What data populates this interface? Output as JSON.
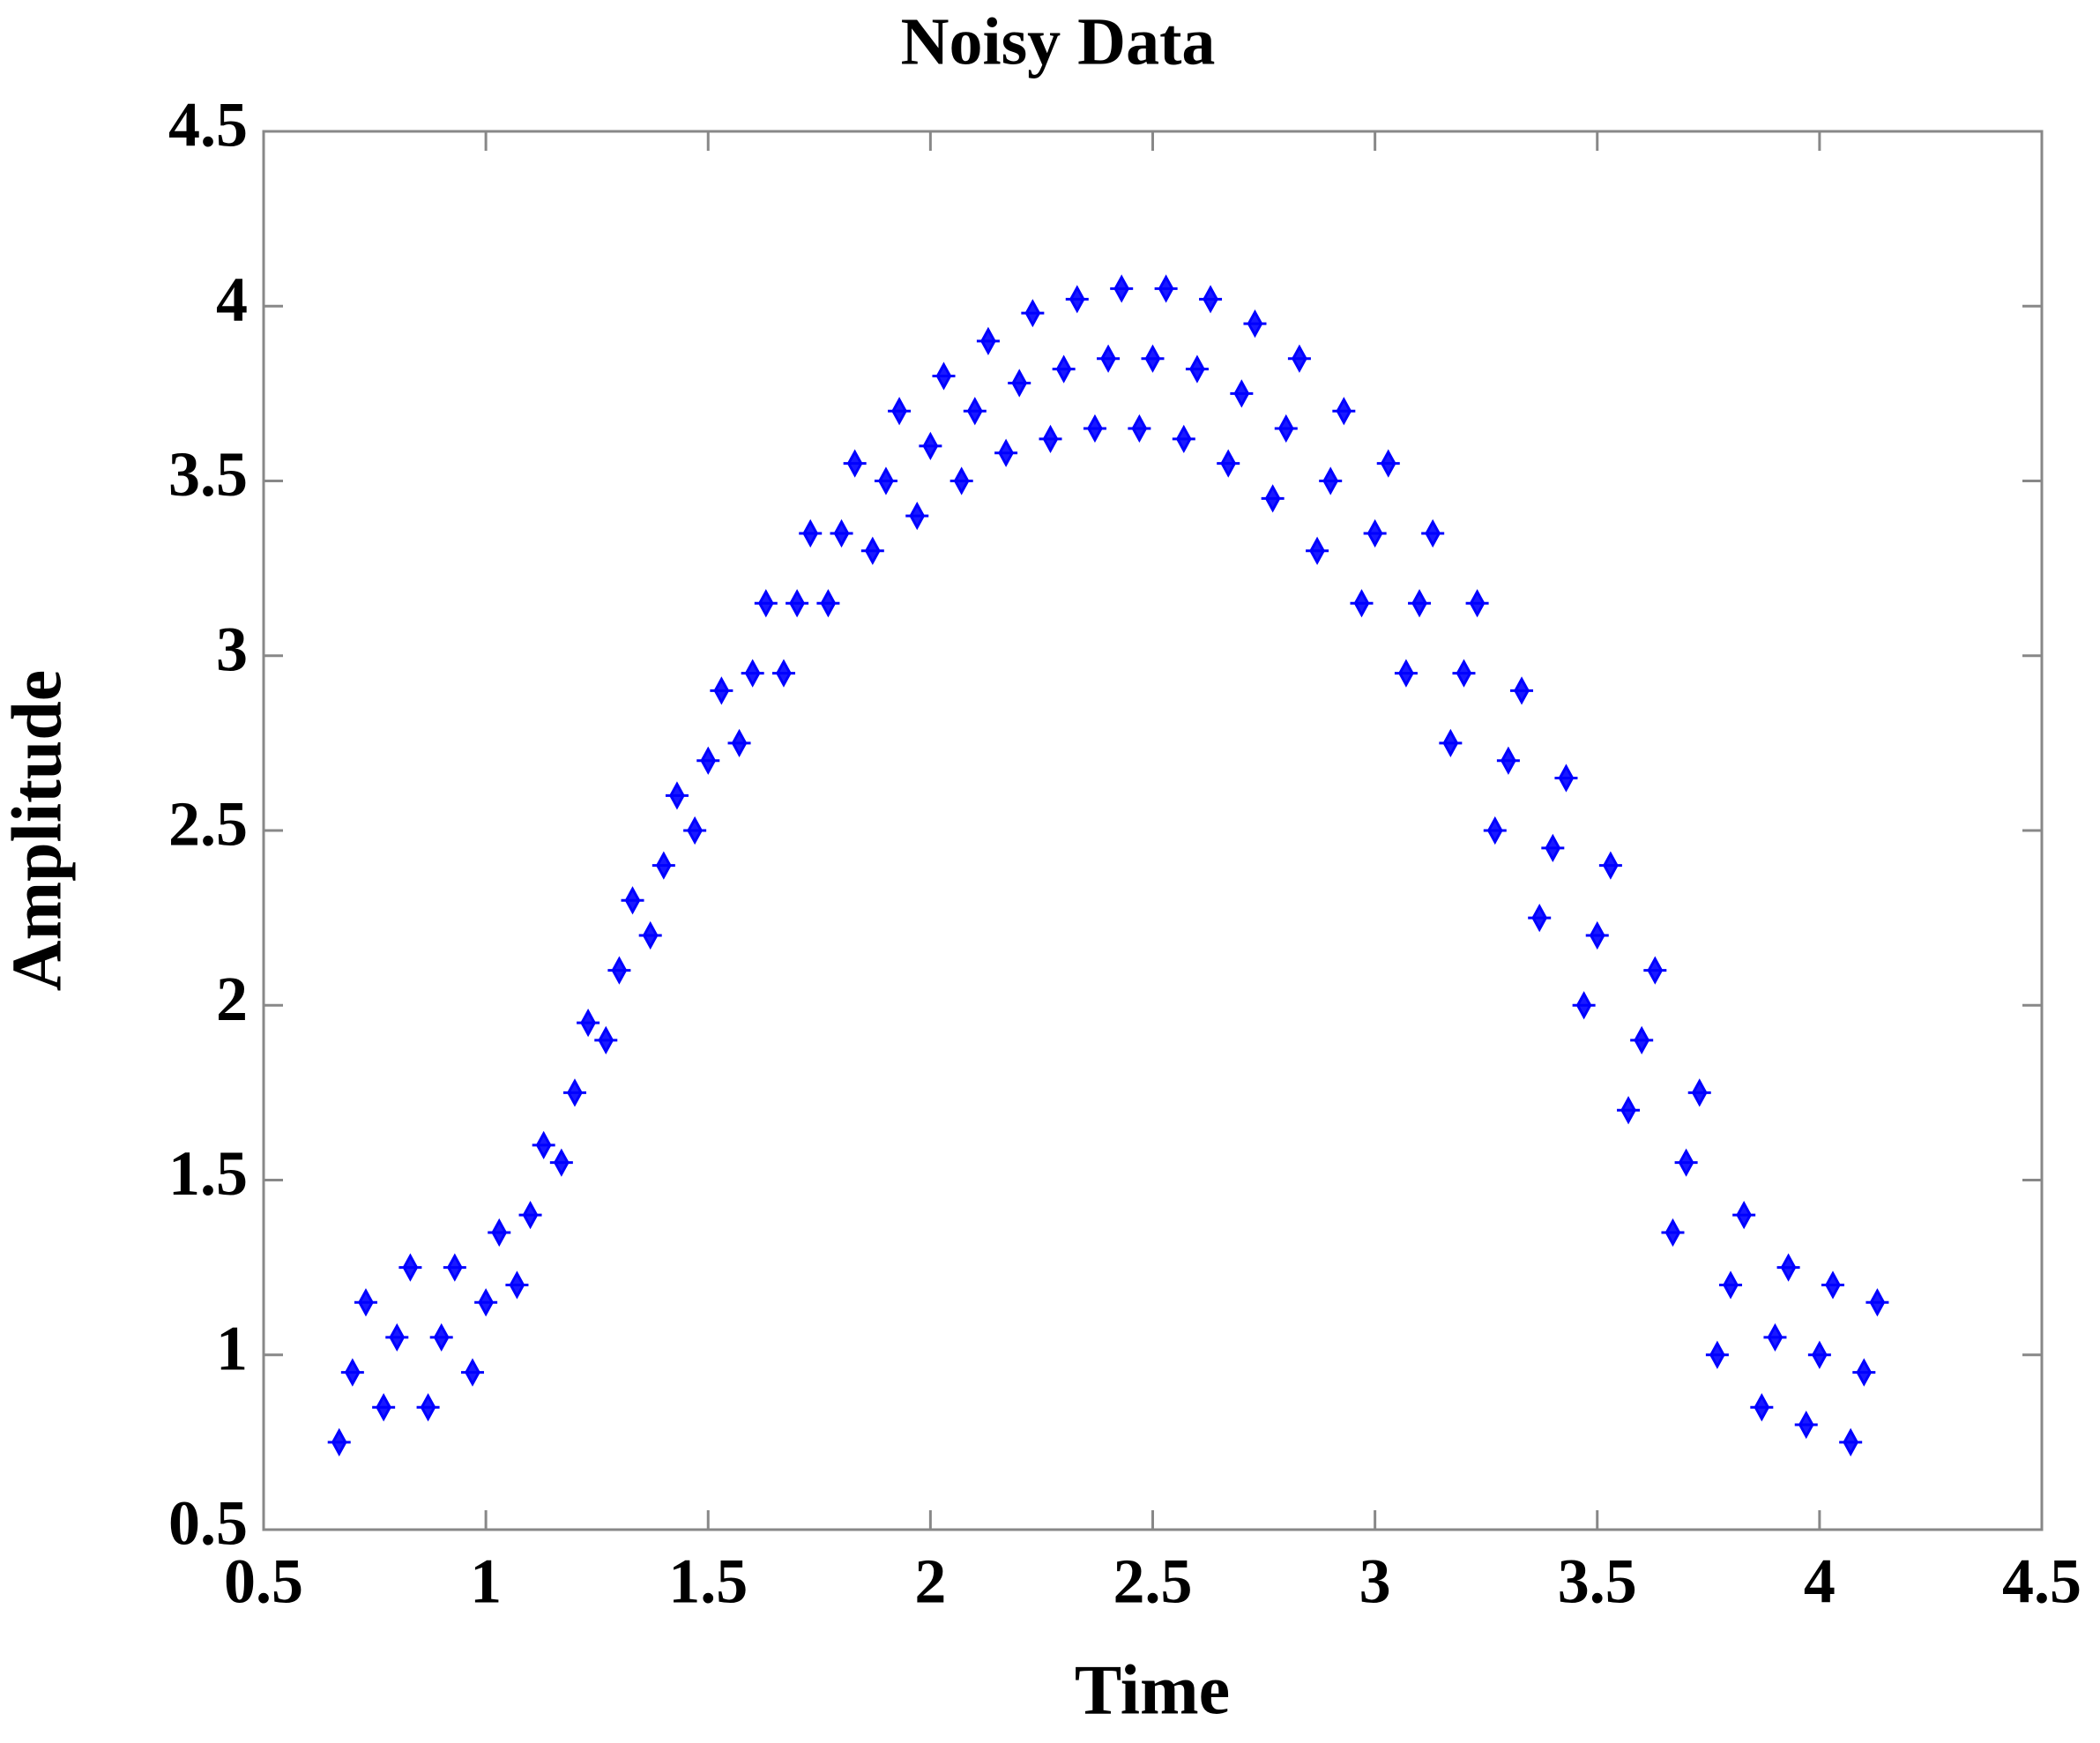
{
  "chart_data": {
    "type": "scatter",
    "title": "Noisy Data",
    "x_label": "Time",
    "y_label": "Amplitude",
    "color": "#0000ff",
    "xlim": [
      0.5,
      4.5
    ],
    "xticks": [
      0.5,
      1,
      1.5,
      2,
      2.5,
      3,
      3.5,
      4,
      4.5
    ],
    "ylim": [
      0.5,
      4.5
    ],
    "yticks": [
      0.5,
      1,
      1.5,
      2,
      2.5,
      3,
      3.5,
      4,
      4.5
    ],
    "grid": false,
    "x": [
      0.67,
      0.7,
      0.73,
      0.77,
      0.8,
      0.83,
      0.87,
      0.9,
      0.93,
      0.97,
      1.0,
      1.03,
      1.07,
      1.1,
      1.13,
      1.17,
      1.2,
      1.23,
      1.27,
      1.3,
      1.33,
      1.37,
      1.4,
      1.43,
      1.47,
      1.5,
      1.53,
      1.57,
      1.6,
      1.63,
      1.67,
      1.7,
      1.73,
      1.77,
      1.8,
      1.83,
      1.87,
      1.9,
      1.93,
      1.97,
      2.0,
      2.03,
      2.07,
      2.1,
      2.13,
      2.17,
      2.2,
      2.23,
      2.27,
      2.3,
      2.33,
      2.37,
      2.4,
      2.43,
      2.47,
      2.5,
      2.53,
      2.57,
      2.6,
      2.63,
      2.67,
      2.7,
      2.73,
      2.77,
      2.8,
      2.83,
      2.87,
      2.9,
      2.93,
      2.97,
      3.0,
      3.03,
      3.07,
      3.1,
      3.13,
      3.17,
      3.2,
      3.23,
      3.27,
      3.3,
      3.33,
      3.37,
      3.4,
      3.43,
      3.47,
      3.5,
      3.53,
      3.57,
      3.6,
      3.63,
      3.67,
      3.7,
      3.73,
      3.77,
      3.8,
      3.83,
      3.87,
      3.9,
      3.93,
      3.97,
      4.0,
      4.03,
      4.07,
      4.1,
      4.13
    ],
    "values": [
      0.75,
      0.95,
      1.15,
      0.85,
      1.05,
      1.25,
      0.85,
      1.05,
      1.25,
      0.95,
      1.15,
      1.35,
      1.2,
      1.4,
      1.6,
      1.55,
      1.75,
      1.95,
      1.9,
      2.1,
      2.3,
      2.2,
      2.4,
      2.6,
      2.5,
      2.7,
      2.9,
      2.75,
      2.95,
      3.15,
      2.95,
      3.15,
      3.35,
      3.15,
      3.35,
      3.55,
      3.3,
      3.5,
      3.7,
      3.4,
      3.6,
      3.8,
      3.5,
      3.7,
      3.9,
      3.58,
      3.78,
      3.98,
      3.62,
      3.82,
      4.02,
      3.65,
      3.85,
      4.05,
      3.65,
      3.85,
      4.05,
      3.62,
      3.82,
      4.02,
      3.55,
      3.75,
      3.95,
      3.45,
      3.65,
      3.85,
      3.3,
      3.5,
      3.7,
      3.15,
      3.35,
      3.55,
      2.95,
      3.15,
      3.35,
      2.75,
      2.95,
      3.15,
      2.5,
      2.7,
      2.9,
      2.25,
      2.45,
      2.65,
      2.0,
      2.2,
      2.4,
      1.7,
      1.9,
      2.1,
      1.35,
      1.55,
      1.75,
      1.0,
      1.2,
      1.4,
      0.85,
      1.05,
      1.25,
      0.8,
      1.0,
      1.2,
      0.75,
      0.95,
      1.15
    ]
  }
}
